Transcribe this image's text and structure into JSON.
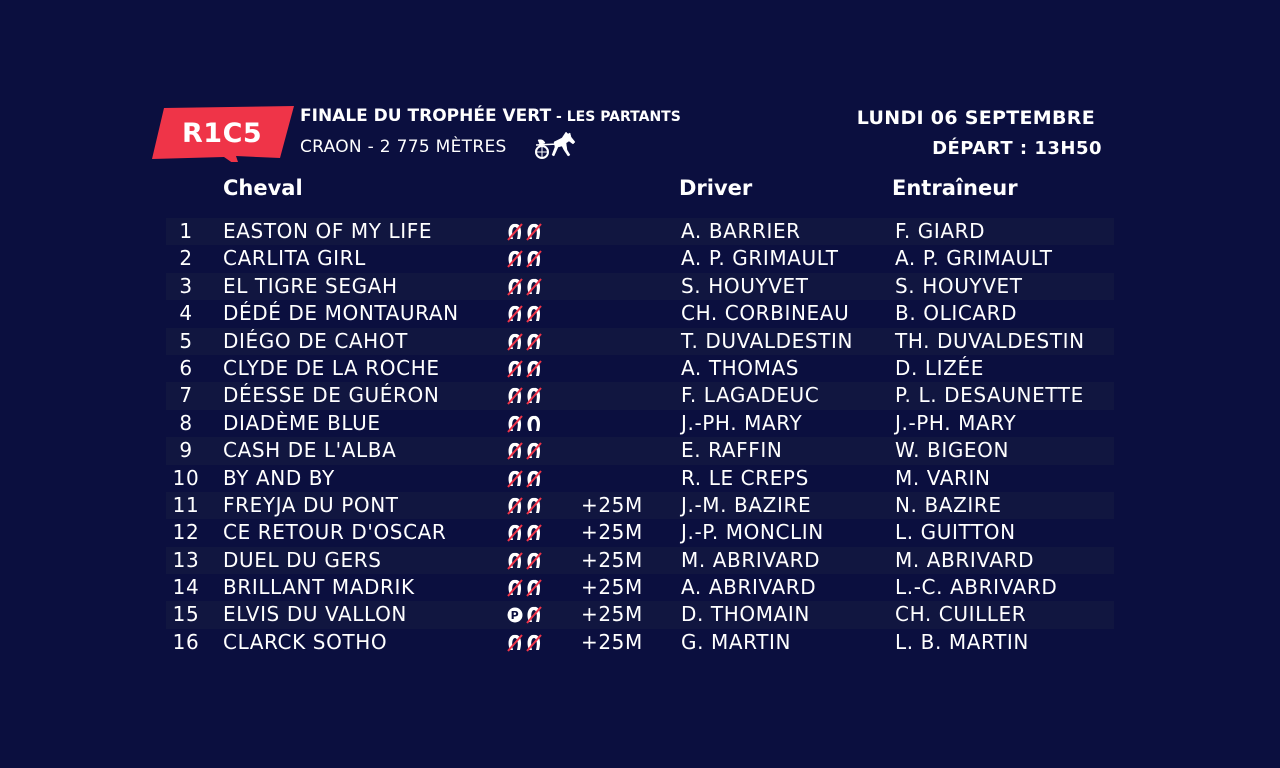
{
  "header": {
    "badge": "R1C5",
    "title": "FINALE DU TROPHÉE VERT",
    "subtitle": " - LES PARTANTS",
    "place": "CRAON - 2 775 MÈTRES",
    "date": "LUNDI 06 SEPTEMBRE",
    "depart": "DÉPART : 13H50",
    "badge_color": "#ef3448",
    "icon": "sulky-icon"
  },
  "columns": {
    "cheval": "Cheval",
    "driver": "Driver",
    "entraineur": "Entraîneur"
  },
  "runners": [
    {
      "num": "1",
      "name": "EASTON OF MY LIFE",
      "shoes": "shoes-both-removed",
      "dist": "",
      "driver": "A. BARRIER",
      "trainer": "F. GIARD"
    },
    {
      "num": "2",
      "name": "CARLITA GIRL",
      "shoes": "shoes-both-removed",
      "dist": "",
      "driver": "A. P. GRIMAULT",
      "trainer": "A. P. GRIMAULT"
    },
    {
      "num": "3",
      "name": "EL TIGRE SEGAH",
      "shoes": "shoes-both-removed",
      "dist": "",
      "driver": "S. HOUYVET",
      "trainer": "S. HOUYVET"
    },
    {
      "num": "4",
      "name": "DÉDÉ DE MONTAURAN",
      "shoes": "shoes-both-removed",
      "dist": "",
      "driver": "CH. CORBINEAU",
      "trainer": "B. OLICARD"
    },
    {
      "num": "5",
      "name": "DIÉGO DE CAHOT",
      "shoes": "shoes-both-removed",
      "dist": "",
      "driver": "T. DUVALDESTIN",
      "trainer": "TH. DUVALDESTIN"
    },
    {
      "num": "6",
      "name": "CLYDE DE LA ROCHE",
      "shoes": "shoes-both-removed",
      "dist": "",
      "driver": "A. THOMAS",
      "trainer": "D. LIZÉE"
    },
    {
      "num": "7",
      "name": "DÉESSE DE GUÉRON",
      "shoes": "shoes-both-removed",
      "dist": "",
      "driver": "F. LAGADEUC",
      "trainer": "P. L. DESAUNETTE"
    },
    {
      "num": "8",
      "name": "DIADÈME BLUE",
      "shoes": "shoes-front-removed",
      "dist": "",
      "driver": "J.-PH. MARY",
      "trainer": "J.-PH. MARY"
    },
    {
      "num": "9",
      "name": "CASH DE L'ALBA",
      "shoes": "shoes-both-removed",
      "dist": "",
      "driver": "E. RAFFIN",
      "trainer": "W. BIGEON"
    },
    {
      "num": "10",
      "name": "BY AND BY",
      "shoes": "shoes-both-removed",
      "dist": "",
      "driver": "R. LE CREPS",
      "trainer": "M. VARIN"
    },
    {
      "num": "11",
      "name": "FREYJA DU PONT",
      "shoes": "shoes-both-removed",
      "dist": "+25M",
      "driver": "J.-M. BAZIRE",
      "trainer": "N. BAZIRE"
    },
    {
      "num": "12",
      "name": "CE RETOUR D'OSCAR",
      "shoes": "shoes-both-removed",
      "dist": "+25M",
      "driver": "J.-P. MONCLIN",
      "trainer": "L. GUITTON"
    },
    {
      "num": "13",
      "name": "DUEL DU GERS",
      "shoes": "shoes-both-removed",
      "dist": "+25M",
      "driver": "M. ABRIVARD",
      "trainer": "M. ABRIVARD"
    },
    {
      "num": "14",
      "name": "BRILLANT MADRIK",
      "shoes": "shoes-both-removed",
      "dist": "+25M",
      "driver": "A. ABRIVARD",
      "trainer": "L.-C. ABRIVARD"
    },
    {
      "num": "15",
      "name": "ELVIS DU VALLON",
      "shoes": "shoes-plate-removed",
      "dist": "+25M",
      "driver": "D. THOMAIN",
      "trainer": "CH. CUILLER"
    },
    {
      "num": "16",
      "name": "CLARCK SOTHO",
      "shoes": "shoes-both-removed",
      "dist": "+25M",
      "driver": "G. MARTIN",
      "trainer": "L. B. MARTIN"
    }
  ]
}
